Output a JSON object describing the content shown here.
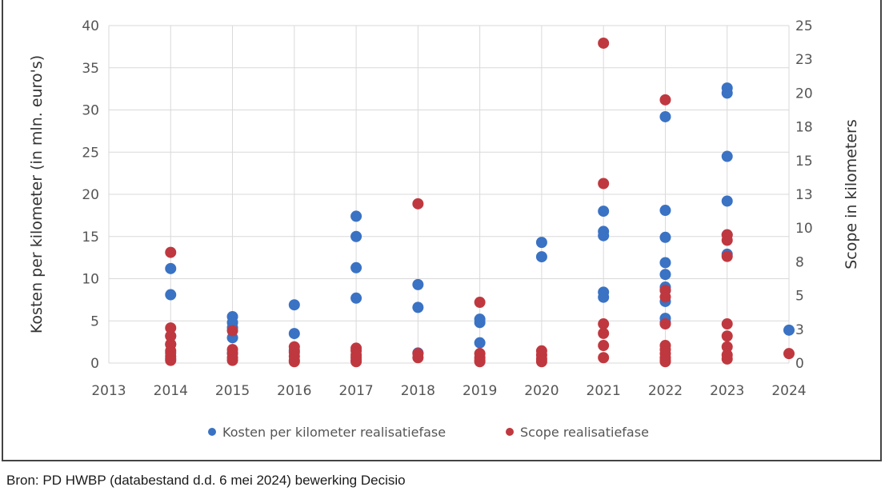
{
  "source_note": "Bron: PD HWBP (databestand d.d. 6 mei 2024) bewerking Decisio",
  "chart_data": {
    "type": "scatter",
    "title": "",
    "xlabel": "",
    "ylabel": "Kosten per kilometer (in mln. euro's)",
    "y2label": "Scope in kilometers",
    "xlim": [
      2013,
      2024
    ],
    "ylim": [
      0,
      40
    ],
    "y2lim": [
      0,
      25
    ],
    "x_ticks": [
      "2013",
      "2014",
      "2015",
      "2016",
      "2017",
      "2018",
      "2019",
      "2020",
      "2021",
      "2022",
      "2023",
      "2024"
    ],
    "y_ticks": [
      "0",
      "5",
      "10",
      "15",
      "20",
      "25",
      "30",
      "35",
      "40"
    ],
    "y2_ticks": [
      "0",
      "3",
      "5",
      "8",
      "10",
      "13",
      "15",
      "18",
      "20",
      "23",
      "25"
    ],
    "grid": true,
    "legend_position": "bottom",
    "series": [
      {
        "name": "Kosten per kilometer realisatiefase",
        "color": "#3a72c4",
        "axis": "left",
        "points": [
          [
            2014,
            11.2
          ],
          [
            2014,
            8.1
          ],
          [
            2014,
            3.2
          ],
          [
            2014,
            2.2
          ],
          [
            2014,
            1.2
          ],
          [
            2014,
            0.5
          ],
          [
            2015,
            5.5
          ],
          [
            2015,
            4.8
          ],
          [
            2015,
            4.2
          ],
          [
            2015,
            3.0
          ],
          [
            2015,
            1.2
          ],
          [
            2016,
            6.9
          ],
          [
            2016,
            3.5
          ],
          [
            2016,
            1.5
          ],
          [
            2017,
            17.4
          ],
          [
            2017,
            15.0
          ],
          [
            2017,
            11.3
          ],
          [
            2017,
            7.7
          ],
          [
            2018,
            9.3
          ],
          [
            2018,
            6.6
          ],
          [
            2018,
            1.2
          ],
          [
            2019,
            5.2
          ],
          [
            2019,
            4.8
          ],
          [
            2019,
            2.4
          ],
          [
            2020,
            14.3
          ],
          [
            2020,
            12.6
          ],
          [
            2021,
            18.0
          ],
          [
            2021,
            15.6
          ],
          [
            2021,
            15.1
          ],
          [
            2021,
            8.4
          ],
          [
            2021,
            7.8
          ],
          [
            2022,
            29.2
          ],
          [
            2022,
            18.1
          ],
          [
            2022,
            14.9
          ],
          [
            2022,
            11.9
          ],
          [
            2022,
            10.5
          ],
          [
            2022,
            9.0
          ],
          [
            2022,
            8.6
          ],
          [
            2022,
            7.3
          ],
          [
            2022,
            5.3
          ],
          [
            2022,
            4.8
          ],
          [
            2023,
            32.6
          ],
          [
            2023,
            32.0
          ],
          [
            2023,
            24.5
          ],
          [
            2023,
            19.2
          ],
          [
            2023,
            15.2
          ],
          [
            2023,
            12.9
          ],
          [
            2024,
            3.9
          ]
        ]
      },
      {
        "name": "Scope realisatiefase",
        "color": "#c0383f",
        "axis": "right",
        "points": [
          [
            2014,
            8.2
          ],
          [
            2014,
            2.6
          ],
          [
            2014,
            2.0
          ],
          [
            2014,
            1.4
          ],
          [
            2014,
            0.9
          ],
          [
            2014,
            0.5
          ],
          [
            2014,
            0.2
          ],
          [
            2015,
            2.4
          ],
          [
            2015,
            1.0
          ],
          [
            2015,
            0.7
          ],
          [
            2015,
            0.4
          ],
          [
            2015,
            0.2
          ],
          [
            2016,
            1.2
          ],
          [
            2016,
            0.8
          ],
          [
            2016,
            0.5
          ],
          [
            2016,
            0.2
          ],
          [
            2016,
            0.1
          ],
          [
            2017,
            1.1
          ],
          [
            2017,
            0.9
          ],
          [
            2017,
            0.6
          ],
          [
            2017,
            0.4
          ],
          [
            2017,
            0.2
          ],
          [
            2017,
            0.1
          ],
          [
            2018,
            11.8
          ],
          [
            2018,
            0.7
          ],
          [
            2018,
            0.4
          ],
          [
            2019,
            4.5
          ],
          [
            2019,
            0.7
          ],
          [
            2019,
            0.4
          ],
          [
            2019,
            0.2
          ],
          [
            2019,
            0.1
          ],
          [
            2020,
            0.9
          ],
          [
            2020,
            0.6
          ],
          [
            2020,
            0.3
          ],
          [
            2020,
            0.1
          ],
          [
            2021,
            23.7
          ],
          [
            2021,
            13.3
          ],
          [
            2021,
            2.9
          ],
          [
            2021,
            2.2
          ],
          [
            2021,
            1.3
          ],
          [
            2021,
            0.4
          ],
          [
            2022,
            19.5
          ],
          [
            2022,
            5.4
          ],
          [
            2022,
            4.9
          ],
          [
            2022,
            2.9
          ],
          [
            2022,
            1.3
          ],
          [
            2022,
            1.0
          ],
          [
            2022,
            0.7
          ],
          [
            2022,
            0.4
          ],
          [
            2022,
            0.2
          ],
          [
            2022,
            0.1
          ],
          [
            2023,
            9.5
          ],
          [
            2023,
            9.1
          ],
          [
            2023,
            7.9
          ],
          [
            2023,
            2.9
          ],
          [
            2023,
            2.0
          ],
          [
            2023,
            1.2
          ],
          [
            2023,
            0.6
          ],
          [
            2023,
            0.3
          ],
          [
            2024,
            0.7
          ]
        ]
      }
    ]
  }
}
